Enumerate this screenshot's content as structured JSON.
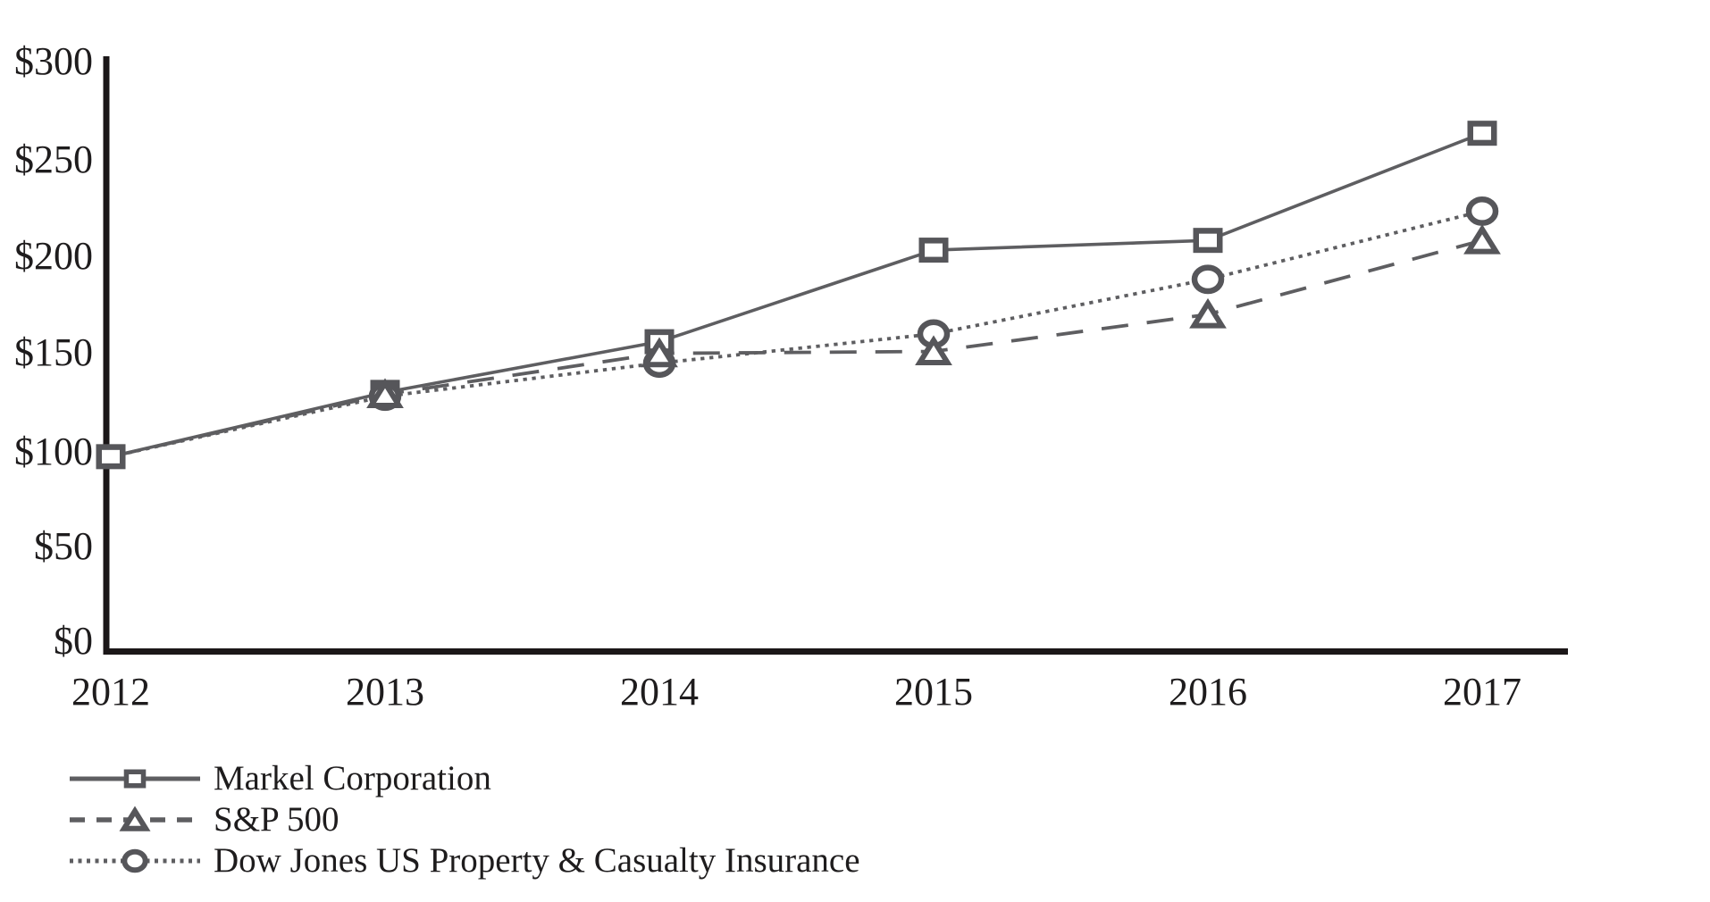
{
  "chart_data": {
    "type": "line",
    "title": "",
    "xlabel": "",
    "ylabel": "",
    "x": [
      2012,
      2013,
      2014,
      2015,
      2016,
      2017
    ],
    "x_tick_labels": [
      "2012",
      "2013",
      "2014",
      "2015",
      "2016",
      "2017"
    ],
    "y_ticks": [
      0,
      50,
      100,
      150,
      200,
      250,
      300
    ],
    "y_tick_labels": [
      "$0",
      "$50",
      "$100",
      "$150",
      "$200",
      "$250",
      "$300"
    ],
    "ylim": [
      0,
      300
    ],
    "grid": false,
    "legend_position": "bottom-left",
    "series": [
      {
        "name": "Markel Corporation",
        "marker": "square",
        "line_style": "solid",
        "values": [
          100,
          133,
          159,
          206,
          211,
          266
        ]
      },
      {
        "name": "S&P 500",
        "marker": "triangle",
        "line_style": "dashed",
        "values": [
          100,
          132,
          153,
          154,
          173,
          211
        ]
      },
      {
        "name": "Dow Jones US Property & Casualty Insurance",
        "marker": "circle",
        "line_style": "dotted",
        "values": [
          100,
          131,
          148,
          163,
          191,
          226
        ]
      }
    ],
    "colors": {
      "background": "#ffffff",
      "axis": "#1b1718",
      "tick_text": "#1e1c1d",
      "line_gray": "#5e5e61",
      "marker_gray": "#56565a"
    }
  }
}
